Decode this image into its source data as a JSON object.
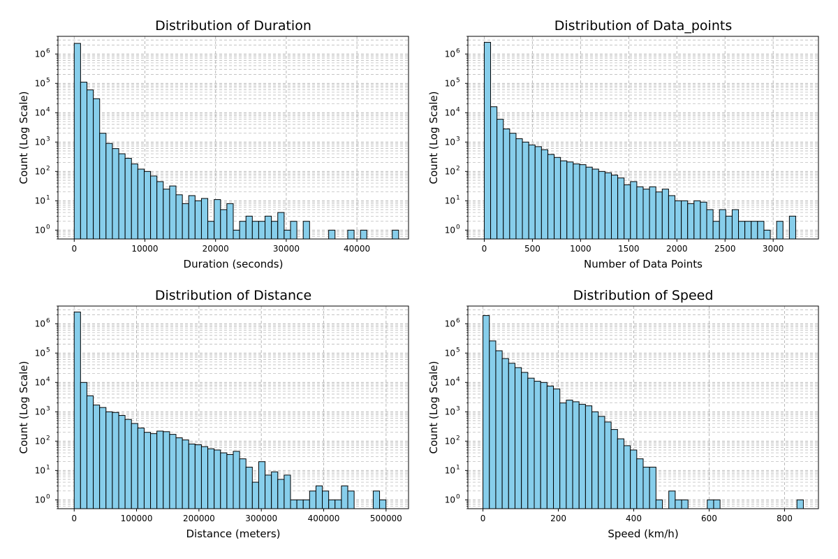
{
  "figure": {
    "background": "#ffffff"
  },
  "style": {
    "bar_fill": "#87ceeb",
    "bar_edge": "#000000",
    "grid_color": "#b0b0b0"
  },
  "chart_data": [
    {
      "type": "bar",
      "title": "Distribution of Duration",
      "xlabel": "Duration (seconds)",
      "ylabel": "Count (Log Scale)",
      "yscale": "log",
      "grid": true,
      "xlim": [
        -2300,
        47300
      ],
      "ylim": [
        0.5,
        4000000
      ],
      "xticks": [
        0,
        10000,
        20000,
        30000,
        40000
      ],
      "xtick_labels": [
        "0",
        "10000",
        "20000",
        "30000",
        "40000"
      ],
      "yticks": [
        1,
        10,
        100,
        1000,
        10000,
        100000,
        1000000
      ],
      "ytick_labels": [
        {
          "base": "10",
          "exp": "0"
        },
        {
          "base": "10",
          "exp": "1"
        },
        {
          "base": "10",
          "exp": "2"
        },
        {
          "base": "10",
          "exp": "3"
        },
        {
          "base": "10",
          "exp": "4"
        },
        {
          "base": "10",
          "exp": "5"
        },
        {
          "base": "10",
          "exp": "6"
        }
      ],
      "bin_start": 0,
      "bin_width": 900,
      "values": [
        2300000,
        110000,
        60000,
        30000,
        2000,
        900,
        600,
        400,
        280,
        180,
        120,
        100,
        70,
        45,
        25,
        32,
        16,
        8,
        15,
        10,
        12,
        2,
        11,
        5,
        8,
        1,
        2,
        3,
        2,
        2,
        3,
        2,
        4,
        1,
        2,
        0,
        2,
        0,
        0,
        0,
        1,
        0,
        0,
        1,
        0,
        1,
        0,
        0,
        0,
        0,
        1
      ]
    },
    {
      "type": "bar",
      "title": "Distribution of Data_points",
      "xlabel": "Number of Data Points",
      "ylabel": "Count (Log Scale)",
      "yscale": "log",
      "grid": true,
      "xlim": [
        -170,
        3470
      ],
      "ylim": [
        0.5,
        4000000
      ],
      "xticks": [
        0,
        500,
        1000,
        1500,
        2000,
        2500,
        3000
      ],
      "xtick_labels": [
        "0",
        "500",
        "1000",
        "1500",
        "2000",
        "2500",
        "3000"
      ],
      "yticks": [
        1,
        10,
        100,
        1000,
        10000,
        100000,
        1000000
      ],
      "ytick_labels": [
        {
          "base": "10",
          "exp": "0"
        },
        {
          "base": "10",
          "exp": "1"
        },
        {
          "base": "10",
          "exp": "2"
        },
        {
          "base": "10",
          "exp": "3"
        },
        {
          "base": "10",
          "exp": "4"
        },
        {
          "base": "10",
          "exp": "5"
        },
        {
          "base": "10",
          "exp": "6"
        }
      ],
      "bin_start": 0,
      "bin_width": 66,
      "values": [
        2500000,
        16000,
        6000,
        2800,
        2000,
        1300,
        1000,
        800,
        700,
        550,
        380,
        300,
        230,
        210,
        180,
        170,
        140,
        120,
        100,
        90,
        75,
        60,
        35,
        45,
        30,
        25,
        30,
        20,
        25,
        15,
        10,
        10,
        8,
        10,
        9,
        5,
        2,
        5,
        3,
        5,
        2,
        2,
        2,
        2,
        1,
        0,
        2,
        0,
        3
      ]
    },
    {
      "type": "bar",
      "title": "Distribution of Distance",
      "xlabel": "Distance (meters)",
      "ylabel": "Count (Log Scale)",
      "yscale": "log",
      "grid": true,
      "xlim": [
        -26000,
        536000
      ],
      "ylim": [
        0.5,
        4000000
      ],
      "xticks": [
        0,
        100000,
        200000,
        300000,
        400000,
        500000
      ],
      "xtick_labels": [
        "0",
        "100000",
        "200000",
        "300000",
        "400000",
        "500000"
      ],
      "yticks": [
        1,
        10,
        100,
        1000,
        10000,
        100000,
        1000000
      ],
      "ytick_labels": [
        {
          "base": "10",
          "exp": "0"
        },
        {
          "base": "10",
          "exp": "1"
        },
        {
          "base": "10",
          "exp": "2"
        },
        {
          "base": "10",
          "exp": "3"
        },
        {
          "base": "10",
          "exp": "4"
        },
        {
          "base": "10",
          "exp": "5"
        },
        {
          "base": "10",
          "exp": "6"
        }
      ],
      "bin_start": 0,
      "bin_width": 10200,
      "values": [
        2500000,
        10000,
        3500,
        1700,
        1400,
        1000,
        950,
        750,
        550,
        400,
        280,
        200,
        180,
        220,
        210,
        170,
        130,
        110,
        80,
        75,
        65,
        55,
        50,
        40,
        35,
        45,
        25,
        13,
        4,
        20,
        7,
        9,
        5,
        7,
        1,
        1,
        1,
        2,
        3,
        2,
        1,
        1,
        3,
        2,
        0,
        0,
        0,
        2,
        1
      ]
    },
    {
      "type": "bar",
      "title": "Distribution of Speed",
      "xlabel": "Speed (km/h)",
      "ylabel": "Count (Log Scale)",
      "yscale": "log",
      "grid": true,
      "xlim": [
        -40,
        890
      ],
      "ylim": [
        0.5,
        4000000
      ],
      "xticks": [
        0,
        200,
        400,
        600,
        800
      ],
      "xtick_labels": [
        "0",
        "200",
        "400",
        "600",
        "800"
      ],
      "yticks": [
        1,
        10,
        100,
        1000,
        10000,
        100000,
        1000000
      ],
      "ytick_labels": [
        {
          "base": "10",
          "exp": "0"
        },
        {
          "base": "10",
          "exp": "1"
        },
        {
          "base": "10",
          "exp": "2"
        },
        {
          "base": "10",
          "exp": "3"
        },
        {
          "base": "10",
          "exp": "4"
        },
        {
          "base": "10",
          "exp": "5"
        },
        {
          "base": "10",
          "exp": "6"
        }
      ],
      "bin_start": 0,
      "bin_width": 17,
      "values": [
        1900000,
        260000,
        120000,
        65000,
        45000,
        32000,
        22000,
        14000,
        11000,
        10000,
        7500,
        6000,
        2000,
        2500,
        2200,
        1800,
        1600,
        1000,
        700,
        450,
        250,
        120,
        70,
        50,
        25,
        13,
        13,
        1,
        0,
        2,
        1,
        1,
        0,
        0,
        0,
        1,
        1,
        0,
        0,
        0,
        0,
        0,
        0,
        0,
        0,
        0,
        0,
        0,
        0,
        1
      ]
    }
  ]
}
